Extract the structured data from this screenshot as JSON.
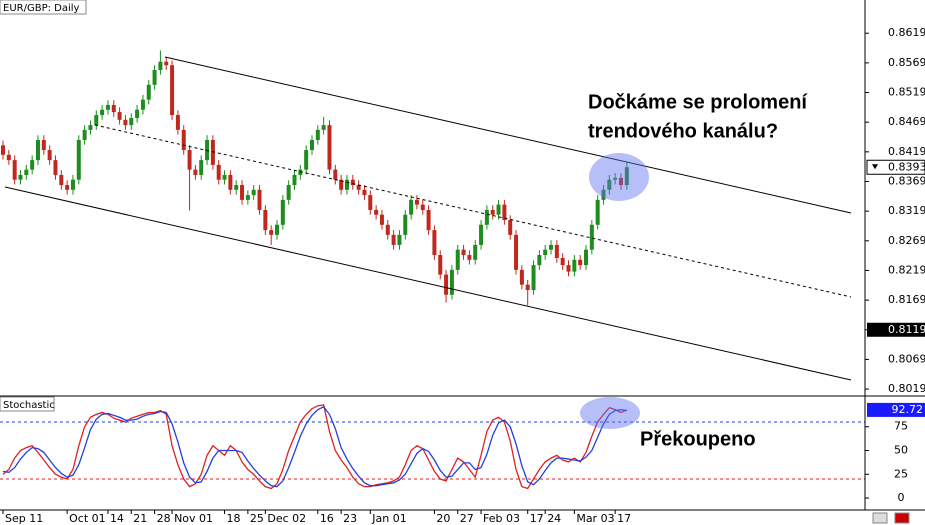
{
  "chart_data": [
    {
      "type": "candlestick",
      "title": "EUR/GBP: Daily",
      "open": [
        0.843,
        0.8414,
        0.8405,
        0.8372,
        0.838,
        0.8389,
        0.8405,
        0.8439,
        0.8422,
        0.8405,
        0.838,
        0.8363,
        0.8355,
        0.8372,
        0.8439,
        0.8456,
        0.8464,
        0.8481,
        0.849,
        0.8498,
        0.8486,
        0.8473,
        0.8464,
        0.8476,
        0.849,
        0.8507,
        0.8532,
        0.8557,
        0.8571,
        0.8565,
        0.8481,
        0.8456,
        0.8422,
        0.8389,
        0.838,
        0.8405,
        0.8439,
        0.8397,
        0.8372,
        0.838,
        0.8355,
        0.8363,
        0.8338,
        0.8346,
        0.8355,
        0.8321,
        0.8287,
        0.8279,
        0.8296,
        0.8338,
        0.8363,
        0.838,
        0.8389,
        0.8422,
        0.8439,
        0.8456,
        0.8464,
        0.8389,
        0.8372,
        0.8355,
        0.8372,
        0.8363,
        0.8355,
        0.8346,
        0.8321,
        0.8313,
        0.8296,
        0.8279,
        0.8262,
        0.8279,
        0.8313,
        0.8338,
        0.833,
        0.8321,
        0.8287,
        0.8245,
        0.8212,
        0.8178,
        0.822,
        0.8254,
        0.8245,
        0.8237,
        0.8262,
        0.8296,
        0.8321,
        0.8313,
        0.833,
        0.8304,
        0.8279,
        0.822,
        0.8195,
        0.8186,
        0.8228,
        0.8245,
        0.8254,
        0.8262,
        0.824,
        0.8228,
        0.8217,
        0.8237,
        0.8228,
        0.8254,
        0.8296,
        0.8338,
        0.8355,
        0.8372,
        0.8375,
        0.8363
      ],
      "high": [
        0.8438,
        0.8422,
        0.8413,
        0.8388,
        0.8397,
        0.8413,
        0.8447,
        0.8447,
        0.843,
        0.8413,
        0.8388,
        0.8371,
        0.838,
        0.8447,
        0.8464,
        0.8472,
        0.8489,
        0.8498,
        0.8506,
        0.8506,
        0.8494,
        0.8481,
        0.8484,
        0.8498,
        0.8515,
        0.854,
        0.8565,
        0.859,
        0.8579,
        0.8573,
        0.8489,
        0.8464,
        0.843,
        0.8397,
        0.8413,
        0.8447,
        0.8447,
        0.8405,
        0.8388,
        0.8388,
        0.8371,
        0.8371,
        0.8354,
        0.8363,
        0.8363,
        0.8329,
        0.8295,
        0.8304,
        0.8346,
        0.8371,
        0.8388,
        0.8397,
        0.843,
        0.8447,
        0.8464,
        0.8478,
        0.8472,
        0.8397,
        0.838,
        0.838,
        0.838,
        0.8371,
        0.8363,
        0.8354,
        0.8329,
        0.8321,
        0.8304,
        0.8287,
        0.8287,
        0.8321,
        0.8346,
        0.8346,
        0.8338,
        0.8329,
        0.8295,
        0.8253,
        0.822,
        0.8228,
        0.8262,
        0.8262,
        0.8253,
        0.827,
        0.8304,
        0.8329,
        0.8329,
        0.8338,
        0.8338,
        0.8312,
        0.8287,
        0.8228,
        0.8203,
        0.8236,
        0.8253,
        0.8262,
        0.827,
        0.827,
        0.8248,
        0.8236,
        0.8245,
        0.8245,
        0.8262,
        0.8304,
        0.8346,
        0.8363,
        0.838,
        0.8383,
        0.8383,
        0.8401
      ],
      "low": [
        0.8406,
        0.8397,
        0.8364,
        0.8364,
        0.8372,
        0.8381,
        0.8397,
        0.8414,
        0.8397,
        0.8372,
        0.8355,
        0.8347,
        0.8347,
        0.8364,
        0.8431,
        0.8448,
        0.8456,
        0.8473,
        0.8482,
        0.8478,
        0.8465,
        0.8456,
        0.8456,
        0.8468,
        0.8482,
        0.8499,
        0.8524,
        0.8549,
        0.8557,
        0.8473,
        0.8448,
        0.8414,
        0.832,
        0.8372,
        0.8372,
        0.8397,
        0.8389,
        0.8364,
        0.8364,
        0.8347,
        0.8347,
        0.833,
        0.833,
        0.8338,
        0.8313,
        0.8279,
        0.8262,
        0.8271,
        0.8288,
        0.833,
        0.8355,
        0.8372,
        0.8381,
        0.8414,
        0.8431,
        0.8448,
        0.8381,
        0.8364,
        0.8347,
        0.8347,
        0.8355,
        0.8347,
        0.8338,
        0.8313,
        0.8305,
        0.8288,
        0.8271,
        0.8254,
        0.8254,
        0.8271,
        0.8305,
        0.8322,
        0.8313,
        0.8279,
        0.8237,
        0.8204,
        0.8165,
        0.817,
        0.8212,
        0.8237,
        0.8229,
        0.8229,
        0.8254,
        0.8288,
        0.8305,
        0.8305,
        0.8296,
        0.8271,
        0.8212,
        0.8187,
        0.816,
        0.8178,
        0.822,
        0.8237,
        0.8246,
        0.8232,
        0.822,
        0.8209,
        0.8209,
        0.822,
        0.822,
        0.8246,
        0.8288,
        0.833,
        0.8347,
        0.8364,
        0.8355,
        0.8355
      ],
      "close": [
        0.8414,
        0.8405,
        0.8372,
        0.838,
        0.8389,
        0.8405,
        0.8439,
        0.8422,
        0.8405,
        0.838,
        0.8363,
        0.8355,
        0.8372,
        0.8439,
        0.8456,
        0.8464,
        0.8481,
        0.849,
        0.8498,
        0.8486,
        0.8473,
        0.8464,
        0.8476,
        0.849,
        0.8507,
        0.8532,
        0.8557,
        0.8571,
        0.8565,
        0.8481,
        0.8456,
        0.8422,
        0.8389,
        0.838,
        0.8405,
        0.8439,
        0.8397,
        0.8372,
        0.838,
        0.8355,
        0.8363,
        0.8338,
        0.8346,
        0.8355,
        0.8321,
        0.8287,
        0.8279,
        0.8296,
        0.8338,
        0.8363,
        0.838,
        0.8389,
        0.8422,
        0.8439,
        0.8456,
        0.8464,
        0.8389,
        0.8372,
        0.8355,
        0.8372,
        0.8363,
        0.8355,
        0.8346,
        0.8321,
        0.8313,
        0.8296,
        0.8279,
        0.8262,
        0.8279,
        0.8313,
        0.8338,
        0.833,
        0.8321,
        0.8287,
        0.8245,
        0.8212,
        0.8178,
        0.822,
        0.8254,
        0.8245,
        0.8237,
        0.8262,
        0.8296,
        0.8321,
        0.8313,
        0.833,
        0.8304,
        0.8279,
        0.822,
        0.8195,
        0.8186,
        0.8228,
        0.8245,
        0.8254,
        0.8262,
        0.824,
        0.8228,
        0.8217,
        0.8237,
        0.8228,
        0.8254,
        0.8296,
        0.8338,
        0.8355,
        0.8372,
        0.8375,
        0.8363,
        0.8393
      ],
      "up_color": "#1e8c1e",
      "down_color": "#c0281e",
      "ylim": [
        0.8009,
        0.8675
      ],
      "yticks": [
        0.8019,
        0.8069,
        0.8119,
        0.8169,
        0.8219,
        0.8269,
        0.8319,
        0.8369,
        0.8419,
        0.8469,
        0.8519,
        0.8569,
        0.8619
      ],
      "highlight_level": 0.8119,
      "annotations": [
        "Dočkáme se prolomení",
        "trendového kanálu?"
      ],
      "xticks": [
        {
          "value": 0,
          "label": "Sep 11"
        },
        {
          "value": 11,
          "label": "Oct 01"
        },
        {
          "value": 18,
          "label": "14"
        },
        {
          "value": 22,
          "label": "21"
        },
        {
          "value": 26,
          "label": "28"
        },
        {
          "value": 29,
          "label": "Nov 01"
        },
        {
          "value": 38,
          "label": "18"
        },
        {
          "value": 42,
          "label": "25"
        },
        {
          "value": 45,
          "label": "Dec 02"
        },
        {
          "value": 54,
          "label": "16"
        },
        {
          "value": 58,
          "label": "23"
        },
        {
          "value": 63,
          "label": "Jan 01"
        },
        {
          "value": 74,
          "label": "20"
        },
        {
          "value": 78,
          "label": "27"
        },
        {
          "value": 82,
          "label": "Feb 03"
        },
        {
          "value": 90,
          "label": "17"
        },
        {
          "value": 93,
          "label": "24"
        },
        {
          "value": 98,
          "label": "Mar 03"
        },
        {
          "value": 105,
          "label": "17"
        }
      ]
    },
    {
      "type": "line",
      "title": "Stochastic",
      "series": [
        {
          "color": "#e02020",
          "values": [
            25,
            30,
            42,
            50,
            53,
            55,
            48,
            40,
            32,
            25,
            22,
            20,
            30,
            55,
            75,
            85,
            88,
            90,
            88,
            84,
            82,
            80,
            84,
            86,
            88,
            90,
            90,
            92,
            88,
            55,
            35,
            20,
            12,
            15,
            25,
            45,
            55,
            50,
            45,
            55,
            50,
            38,
            30,
            25,
            18,
            12,
            10,
            15,
            30,
            50,
            65,
            80,
            88,
            94,
            97,
            98,
            70,
            50,
            40,
            32,
            22,
            15,
            12,
            12,
            14,
            15,
            16,
            18,
            22,
            35,
            50,
            55,
            52,
            40,
            28,
            20,
            18,
            30,
            42,
            38,
            30,
            22,
            45,
            70,
            82,
            85,
            80,
            60,
            30,
            12,
            10,
            20,
            30,
            38,
            42,
            45,
            40,
            38,
            42,
            38,
            48,
            65,
            80,
            88,
            95,
            93,
            90,
            92.72
          ]
        },
        {
          "color": "#2040e0",
          "values": [
            28,
            27,
            32,
            41,
            48,
            53,
            52,
            48,
            40,
            32,
            26,
            22,
            24,
            35,
            53,
            72,
            83,
            88,
            89,
            87,
            85,
            82,
            82,
            83,
            86,
            88,
            89,
            91,
            90,
            78,
            59,
            37,
            22,
            16,
            17,
            28,
            42,
            50,
            50,
            50,
            50,
            48,
            39,
            31,
            24,
            18,
            13,
            12,
            18,
            32,
            48,
            65,
            78,
            87,
            93,
            96,
            88,
            73,
            53,
            41,
            31,
            23,
            16,
            13,
            13,
            14,
            15,
            16,
            19,
            25,
            36,
            47,
            52,
            49,
            40,
            29,
            22,
            23,
            30,
            37,
            37,
            30,
            32,
            46,
            66,
            79,
            82,
            75,
            57,
            34,
            17,
            14,
            20,
            29,
            37,
            42,
            42,
            41,
            40,
            39,
            43,
            50,
            64,
            78,
            88,
            92,
            93,
            92
          ]
        }
      ],
      "ylim": [
        -12.6,
        106.3
      ],
      "yticks": [
        0,
        25,
        50,
        75
      ],
      "levels": [
        80,
        20
      ],
      "level_colors": [
        "#2040e0",
        "#e02020"
      ],
      "annotation": "Překoupeno"
    }
  ]
}
